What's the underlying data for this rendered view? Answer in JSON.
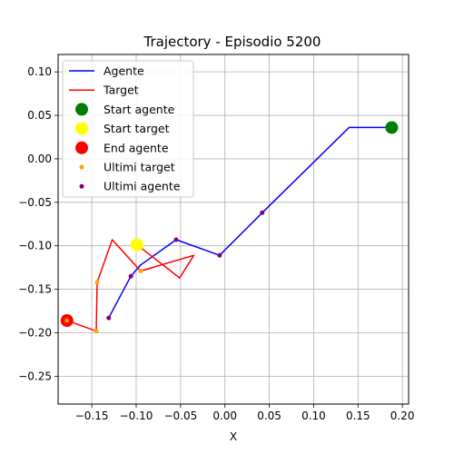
{
  "chart_data": {
    "type": "line",
    "title": "Trajectory - Episodio 5200",
    "xlabel": "X",
    "ylabel": "",
    "xlim": [
      -0.188,
      0.207
    ],
    "ylim": [
      -0.282,
      0.12
    ],
    "xticks": [
      -0.15,
      -0.1,
      -0.05,
      0.0,
      0.05,
      0.1,
      0.15,
      0.2
    ],
    "xtick_labels": [
      "−0.15",
      "−0.10",
      "−0.05",
      "0.00",
      "0.05",
      "0.10",
      "0.15",
      "0.20"
    ],
    "yticks": [
      0.1,
      0.05,
      0.0,
      -0.05,
      -0.1,
      -0.15,
      -0.2,
      -0.25
    ],
    "ytick_labels": [
      "0.10",
      "0.05",
      "0.00",
      "−0.05",
      "−0.10",
      "−0.15",
      "−0.20",
      "−0.25"
    ],
    "grid": true,
    "legend_position": "top-left",
    "series": [
      {
        "name": "Agente",
        "kind": "line",
        "color": "#0000ff",
        "x": [
          -0.131,
          -0.106,
          -0.095,
          -0.055,
          -0.006,
          0.042,
          0.14,
          0.188
        ],
        "y": [
          -0.183,
          -0.135,
          -0.122,
          -0.093,
          -0.111,
          -0.062,
          0.036,
          0.036
        ]
      },
      {
        "name": "Target",
        "kind": "line",
        "color": "#ff0000",
        "x": [
          -0.178,
          -0.145,
          -0.144,
          -0.127,
          -0.095,
          -0.035,
          -0.051,
          -0.099
        ],
        "y": [
          -0.186,
          -0.198,
          -0.142,
          -0.093,
          -0.129,
          -0.111,
          -0.137,
          -0.099
        ]
      },
      {
        "name": "Start agente",
        "kind": "marker",
        "color": "#008000",
        "x": [
          0.188
        ],
        "y": [
          0.036
        ]
      },
      {
        "name": "Start target",
        "kind": "marker",
        "color": "#ffff00",
        "x": [
          -0.099
        ],
        "y": [
          -0.099
        ]
      },
      {
        "name": "End agente",
        "kind": "marker",
        "color": "#ff0000",
        "x": [
          -0.178
        ],
        "y": [
          -0.186
        ]
      },
      {
        "name": "Ultimi target",
        "kind": "points",
        "color": "#ffa500",
        "x": [
          -0.178,
          -0.145,
          -0.144,
          -0.095
        ],
        "y": [
          -0.186,
          -0.198,
          -0.142,
          -0.129
        ]
      },
      {
        "name": "Ultimi agente",
        "kind": "points",
        "color": "#800080",
        "x": [
          -0.131,
          -0.106,
          -0.055,
          -0.006,
          0.042
        ],
        "y": [
          -0.183,
          -0.135,
          -0.093,
          -0.111,
          -0.062
        ]
      }
    ]
  }
}
